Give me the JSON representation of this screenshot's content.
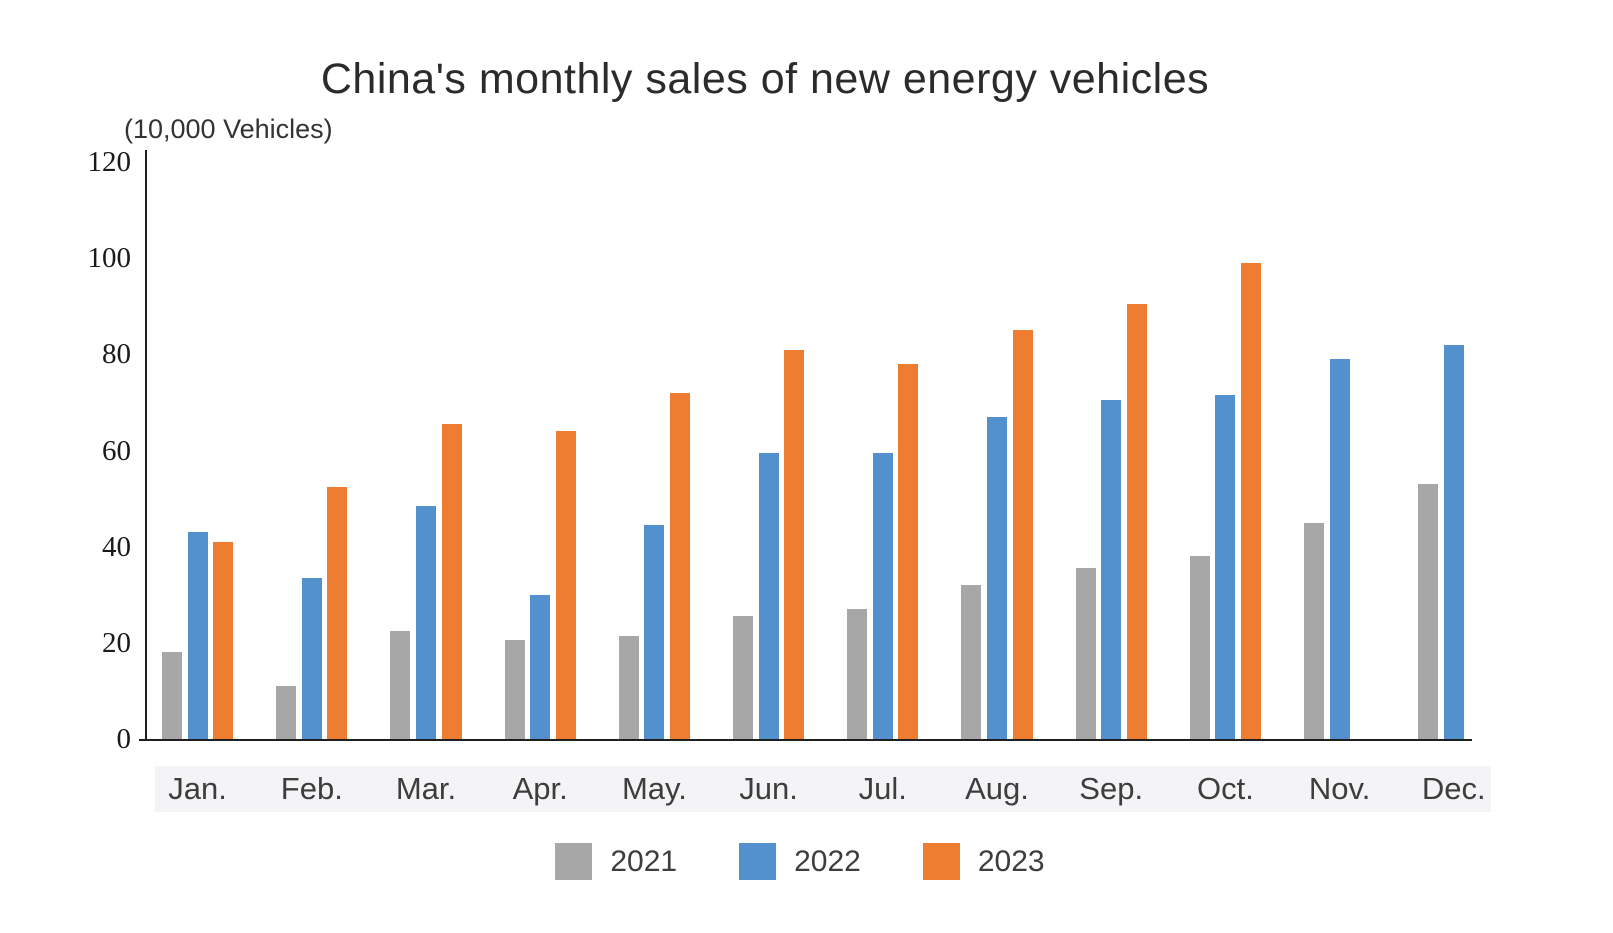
{
  "title": "China's monthly sales of new energy vehicles",
  "y_axis_unit_label": "(10,000 Vehicles)",
  "chart_data": {
    "type": "bar",
    "categories": [
      "Jan.",
      "Feb.",
      "Mar.",
      "Apr.",
      "May.",
      "Jun.",
      "Jul.",
      "Aug.",
      "Sep.",
      "Oct.",
      "Nov.",
      "Dec."
    ],
    "series": [
      {
        "name": "2021",
        "color": "#a7a7a7",
        "values": [
          18,
          11,
          22.5,
          20.5,
          21.5,
          25.5,
          27,
          32,
          35.5,
          38,
          45,
          53
        ]
      },
      {
        "name": "2022",
        "color": "#5390ce",
        "values": [
          43,
          33.5,
          48.5,
          30,
          44.5,
          59.5,
          59.5,
          67,
          70.5,
          71.5,
          79,
          82
        ]
      },
      {
        "name": "2023",
        "color": "#ee7d31",
        "values": [
          41,
          52.5,
          65.5,
          64,
          72,
          81,
          78,
          85,
          90.5,
          99,
          null,
          null
        ]
      }
    ],
    "ylabel": "(10,000 Vehicles)",
    "ylim": [
      0,
      120
    ],
    "yticks": [
      0,
      20,
      40,
      60,
      80,
      100,
      120
    ],
    "grid": false,
    "legend_position": "bottom",
    "axis_color": "#1f1f1f",
    "background_color": "#ffffff"
  }
}
